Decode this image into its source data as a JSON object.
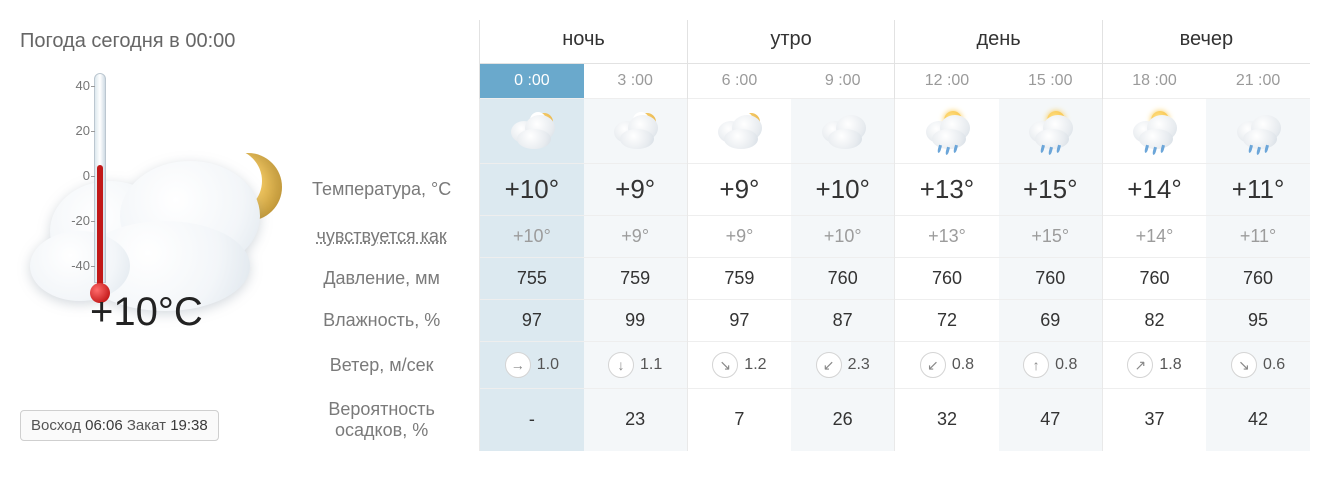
{
  "title": "Погода сегодня в 00:00",
  "current": {
    "temp": "+10°C",
    "thermo": {
      "min": -40,
      "max": 40,
      "value": 10,
      "labels": [
        "40",
        "20",
        "0",
        "-20",
        "-40"
      ]
    }
  },
  "sun": {
    "rise_label": "Восход",
    "rise": "06:06",
    "set_label": "Закат",
    "set": "19:38"
  },
  "periods": [
    "ночь",
    "утро",
    "день",
    "вечер"
  ],
  "labels": {
    "temp": "Температура, °C",
    "feels": "чувствуется как",
    "pressure": "Давление, мм",
    "humidity": "Влажность, %",
    "wind": "Ветер, м/сек",
    "precip": "Вероятность осадков, %"
  },
  "colors": {
    "active_hour_bg": "#6aa9cc",
    "active_col_bg": "#dce9f0",
    "alt_col_bg": "#f4f7f9",
    "border": "#e2e2e2",
    "text_muted": "#9a9a9a"
  },
  "hours": [
    {
      "time": "0 :00",
      "active": true,
      "icon": "night-cloud",
      "temp": "+10°",
      "feels": "+10°",
      "pressure": "755",
      "humidity": "97",
      "wind_dir": "→",
      "wind_speed": "1.0",
      "precip": "-"
    },
    {
      "time": "3 :00",
      "active": false,
      "icon": "night-cloud",
      "temp": "+9°",
      "feels": "+9°",
      "pressure": "759",
      "humidity": "99",
      "wind_dir": "↓",
      "wind_speed": "1.1",
      "precip": "23"
    },
    {
      "time": "6 :00",
      "active": false,
      "icon": "night-cloud",
      "temp": "+9°",
      "feels": "+9°",
      "pressure": "759",
      "humidity": "97",
      "wind_dir": "↘",
      "wind_speed": "1.2",
      "precip": "7"
    },
    {
      "time": "9 :00",
      "active": false,
      "icon": "cloud",
      "temp": "+10°",
      "feels": "+10°",
      "pressure": "760",
      "humidity": "87",
      "wind_dir": "↙",
      "wind_speed": "2.3",
      "precip": "26"
    },
    {
      "time": "12 :00",
      "active": false,
      "icon": "sun-cloud-rain",
      "temp": "+13°",
      "feels": "+13°",
      "pressure": "760",
      "humidity": "72",
      "wind_dir": "↙",
      "wind_speed": "0.8",
      "precip": "32"
    },
    {
      "time": "15 :00",
      "active": false,
      "icon": "sun-cloud-rain",
      "temp": "+15°",
      "feels": "+15°",
      "pressure": "760",
      "humidity": "69",
      "wind_dir": "↑",
      "wind_speed": "0.8",
      "precip": "47"
    },
    {
      "time": "18 :00",
      "active": false,
      "icon": "sun-cloud-rain",
      "temp": "+14°",
      "feels": "+14°",
      "pressure": "760",
      "humidity": "82",
      "wind_dir": "↗",
      "wind_speed": "1.8",
      "precip": "37"
    },
    {
      "time": "21 :00",
      "active": false,
      "icon": "cloud-rain",
      "temp": "+11°",
      "feels": "+11°",
      "pressure": "760",
      "humidity": "95",
      "wind_dir": "↘",
      "wind_speed": "0.6",
      "precip": "42"
    }
  ]
}
